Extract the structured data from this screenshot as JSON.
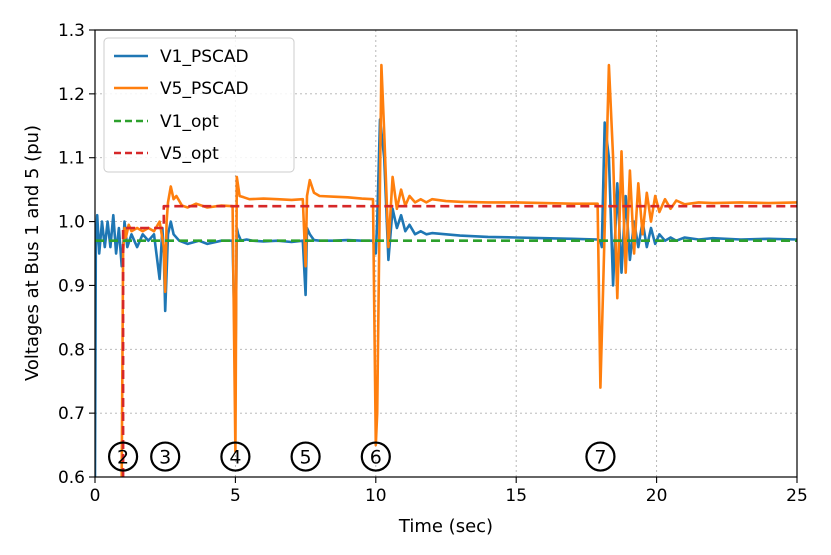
{
  "chart_data": {
    "type": "line",
    "title": "",
    "xlabel": "Time (sec)",
    "ylabel": "Voltages at Bus 1 and 5 (pu)",
    "xlim": [
      0,
      25
    ],
    "ylim": [
      0.6,
      1.3
    ],
    "grid": true,
    "legend_position": "top-left",
    "x_ticks": [
      0,
      5,
      10,
      15,
      20,
      25
    ],
    "x_tick_labels": [
      "0",
      "5",
      "10",
      "15",
      "20",
      "25"
    ],
    "y_ticks": [
      0.6,
      0.7,
      0.8,
      0.9,
      1.0,
      1.1,
      1.2,
      1.3
    ],
    "y_tick_labels": [
      "0.6",
      "0.7",
      "0.8",
      "0.9",
      "1.0",
      "1.1",
      "1.2",
      "1.3"
    ],
    "series": [
      {
        "name": "V1_PSCAD",
        "style": "solid",
        "color": "#1f77b4",
        "x": [
          0,
          0.03,
          0.08,
          0.15,
          0.25,
          0.35,
          0.45,
          0.55,
          0.65,
          0.75,
          0.85,
          0.95,
          1.0,
          1.05,
          1.15,
          1.3,
          1.5,
          1.7,
          1.9,
          2.1,
          2.3,
          2.4,
          2.45,
          2.5,
          2.6,
          2.7,
          2.8,
          3.0,
          3.3,
          3.7,
          4.0,
          4.5,
          4.9,
          5.0,
          5.05,
          5.1,
          5.2,
          5.4,
          5.6,
          6.0,
          6.5,
          7.0,
          7.4,
          7.5,
          7.55,
          7.65,
          7.8,
          8.0,
          8.5,
          9.0,
          9.5,
          9.9,
          10.0,
          10.05,
          10.15,
          10.3,
          10.45,
          10.6,
          10.75,
          10.9,
          11.05,
          11.2,
          11.4,
          11.6,
          11.8,
          12.0,
          12.5,
          13.0,
          14.0,
          15.0,
          16.0,
          17.0,
          17.9,
          18.0,
          18.05,
          18.15,
          18.3,
          18.45,
          18.6,
          18.75,
          18.9,
          19.05,
          19.2,
          19.35,
          19.5,
          19.65,
          19.8,
          19.95,
          20.1,
          20.3,
          20.5,
          20.7,
          21.0,
          21.5,
          22.0,
          23.0,
          24.0,
          25.0
        ],
        "values": [
          0.6,
          0.96,
          1.01,
          0.95,
          1.0,
          0.96,
          1.0,
          0.96,
          1.01,
          0.95,
          0.99,
          0.93,
          0.96,
          1.0,
          0.96,
          0.98,
          0.96,
          0.98,
          0.97,
          0.98,
          0.91,
          0.99,
          0.95,
          0.86,
          0.98,
          1.0,
          0.98,
          0.97,
          0.965,
          0.97,
          0.965,
          0.97,
          0.97,
          0.76,
          0.99,
          0.98,
          0.97,
          0.972,
          0.97,
          0.969,
          0.97,
          0.968,
          0.97,
          0.885,
          0.99,
          0.98,
          0.971,
          0.97,
          0.97,
          0.971,
          0.97,
          0.97,
          0.95,
          1.0,
          1.16,
          1.1,
          0.94,
          1.02,
          0.99,
          1.01,
          0.985,
          0.995,
          0.98,
          0.985,
          0.98,
          0.982,
          0.98,
          0.978,
          0.976,
          0.975,
          0.974,
          0.973,
          0.972,
          0.97,
          0.96,
          1.155,
          1.1,
          0.9,
          1.06,
          0.92,
          1.04,
          0.94,
          1.0,
          0.96,
          1.0,
          0.96,
          0.99,
          0.965,
          0.98,
          0.97,
          0.975,
          0.97,
          0.975,
          0.972,
          0.974,
          0.972,
          0.973,
          0.972
        ]
      },
      {
        "name": "V5_PSCAD",
        "style": "solid",
        "color": "#ff7f0e",
        "x": [
          0.95,
          1.0,
          1.05,
          1.1,
          1.2,
          1.3,
          1.5,
          1.7,
          1.9,
          2.1,
          2.3,
          2.45,
          2.5,
          2.55,
          2.6,
          2.7,
          2.8,
          2.9,
          3.1,
          3.3,
          3.6,
          4.0,
          4.5,
          4.9,
          5.0,
          5.05,
          5.15,
          5.3,
          5.5,
          6.0,
          6.5,
          7.0,
          7.4,
          7.5,
          7.55,
          7.65,
          7.8,
          8.0,
          8.5,
          9.0,
          9.5,
          9.9,
          10.0,
          10.05,
          10.2,
          10.3,
          10.45,
          10.6,
          10.75,
          10.9,
          11.05,
          11.2,
          11.4,
          11.6,
          11.8,
          12.0,
          12.5,
          13.0,
          14.0,
          15.0,
          16.0,
          17.0,
          17.9,
          18.0,
          18.1,
          18.3,
          18.45,
          18.6,
          18.75,
          18.9,
          19.05,
          19.2,
          19.35,
          19.5,
          19.65,
          19.8,
          19.95,
          20.1,
          20.3,
          20.5,
          20.7,
          21.0,
          21.5,
          22.0,
          23.0,
          24.0,
          25.0
        ],
        "values": [
          0.6,
          0.95,
          0.99,
          0.975,
          0.995,
          0.985,
          0.99,
          0.985,
          0.99,
          0.985,
          1.0,
          0.96,
          0.89,
          1.0,
          1.03,
          1.055,
          1.035,
          1.04,
          1.025,
          1.022,
          1.028,
          1.022,
          1.025,
          1.024,
          0.64,
          1.07,
          1.04,
          1.038,
          1.035,
          1.036,
          1.035,
          1.034,
          1.035,
          0.93,
          1.04,
          1.065,
          1.045,
          1.04,
          1.039,
          1.038,
          1.036,
          1.035,
          0.65,
          0.7,
          1.245,
          1.14,
          0.96,
          1.07,
          1.02,
          1.05,
          1.025,
          1.04,
          1.03,
          1.035,
          1.03,
          1.035,
          1.032,
          1.031,
          1.03,
          1.03,
          1.029,
          1.028,
          1.028,
          0.74,
          0.9,
          1.245,
          1.1,
          0.88,
          1.11,
          0.92,
          1.08,
          0.95,
          1.06,
          0.98,
          1.045,
          1.0,
          1.04,
          1.015,
          1.035,
          1.02,
          1.033,
          1.027,
          1.03,
          1.029,
          1.03,
          1.029,
          1.03
        ]
      },
      {
        "name": "V1_opt",
        "style": "dashed",
        "color": "#2ca02c",
        "x": [
          0,
          25
        ],
        "values": [
          0.97,
          0.97
        ]
      },
      {
        "name": "V5_opt",
        "style": "dashed",
        "color": "#d62728",
        "x": [
          1.0,
          1.0,
          1.1,
          2.45,
          2.45,
          2.6,
          25
        ],
        "values": [
          0.6,
          0.99,
          0.99,
          0.99,
          1.024,
          1.024,
          1.024
        ]
      }
    ],
    "annotations": [
      {
        "label": "2",
        "x": 1.0,
        "y": 0.632
      },
      {
        "label": "3",
        "x": 2.5,
        "y": 0.632
      },
      {
        "label": "4",
        "x": 5.0,
        "y": 0.632
      },
      {
        "label": "5",
        "x": 7.5,
        "y": 0.632
      },
      {
        "label": "6",
        "x": 10.0,
        "y": 0.632
      },
      {
        "label": "7",
        "x": 18.0,
        "y": 0.632
      }
    ]
  }
}
